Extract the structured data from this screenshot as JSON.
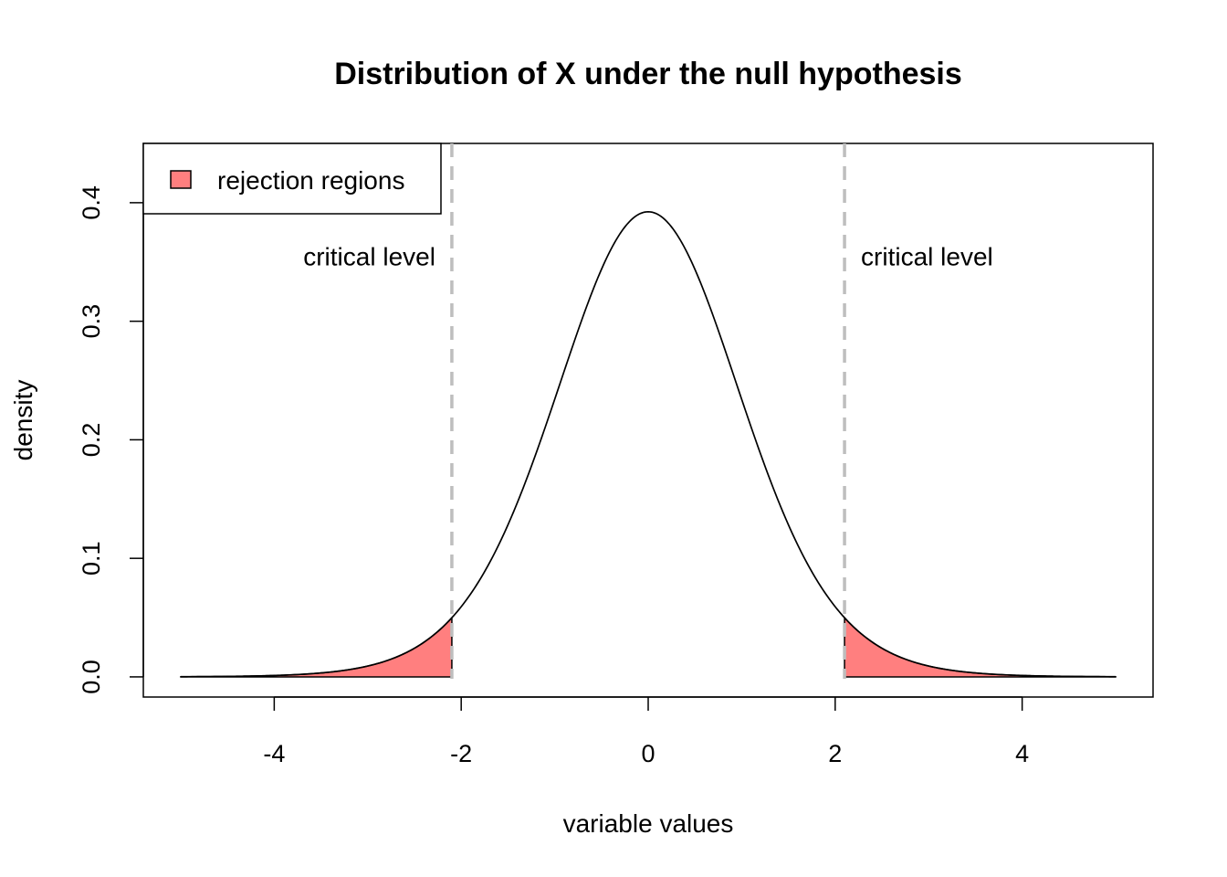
{
  "chart_data": {
    "type": "area",
    "title": "Distribution of X under the null hypothesis",
    "xlabel": "variable values",
    "ylabel": "density",
    "xlim": [
      -5.4,
      5.4
    ],
    "ylim": [
      -0.017,
      0.45
    ],
    "x_ticks": [
      -4,
      -2,
      0,
      2,
      4
    ],
    "y_ticks": [
      0.0,
      0.1,
      0.2,
      0.3,
      0.4
    ],
    "x_tick_labels": [
      "-4",
      "-2",
      "0",
      "2",
      "4"
    ],
    "y_tick_labels": [
      "0.0",
      "0.1",
      "0.2",
      "0.3",
      "0.4"
    ],
    "curve": {
      "distribution": "t",
      "df": 15,
      "x_range": [
        -5,
        5
      ],
      "peak_density": 0.394,
      "color": "#000000"
    },
    "critical_values": [
      -2.1,
      2.1
    ],
    "critical_line_color": "#BEBEBE",
    "rejection_fill_color": "#FF7F7F",
    "annotations": [
      {
        "text": "critical level",
        "x": -2.1,
        "y": 0.355,
        "side": "left"
      },
      {
        "text": "critical level",
        "x": 2.1,
        "y": 0.355,
        "side": "right"
      }
    ],
    "legend": {
      "position": "top-left",
      "entries": [
        {
          "label": "rejection regions",
          "color": "#FF7F7F"
        }
      ]
    },
    "grid": false
  }
}
